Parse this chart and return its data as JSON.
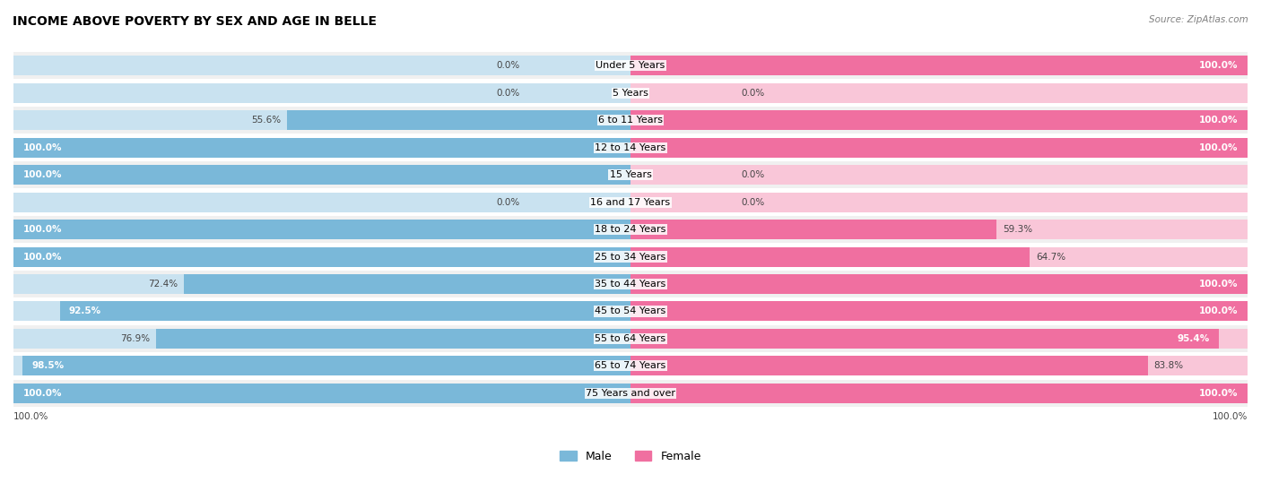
{
  "title": "INCOME ABOVE POVERTY BY SEX AND AGE IN BELLE",
  "source": "Source: ZipAtlas.com",
  "categories": [
    "Under 5 Years",
    "5 Years",
    "6 to 11 Years",
    "12 to 14 Years",
    "15 Years",
    "16 and 17 Years",
    "18 to 24 Years",
    "25 to 34 Years",
    "35 to 44 Years",
    "45 to 54 Years",
    "55 to 64 Years",
    "65 to 74 Years",
    "75 Years and over"
  ],
  "male": [
    0.0,
    0.0,
    55.6,
    100.0,
    100.0,
    0.0,
    100.0,
    100.0,
    72.4,
    92.5,
    76.9,
    98.5,
    100.0
  ],
  "female": [
    100.0,
    0.0,
    100.0,
    100.0,
    0.0,
    0.0,
    59.3,
    64.7,
    100.0,
    100.0,
    95.4,
    83.8,
    100.0
  ],
  "male_color": "#7ab8d9",
  "female_color": "#f06fa0",
  "male_color_light": "#c9e2f0",
  "female_color_light": "#f9c6d8",
  "row_bg_even": "#f0f0f0",
  "row_bg_odd": "#ffffff",
  "title_fontsize": 10,
  "label_fontsize": 8,
  "value_fontsize": 7.5,
  "legend_fontsize": 9,
  "bar_bg_color": "#e0e0e0"
}
